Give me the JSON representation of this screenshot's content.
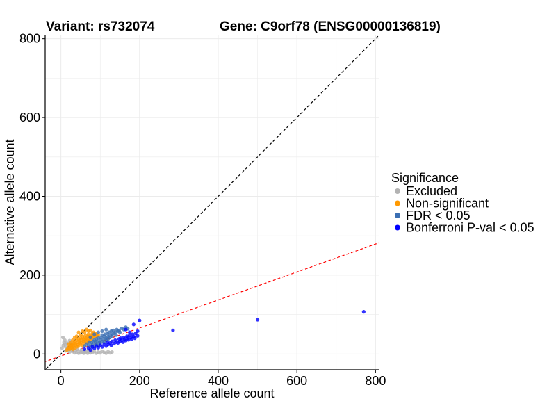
{
  "chart_data": {
    "type": "scatter",
    "title_variant": "Variant: rs732074",
    "title_gene": "Gene: C9orf78 (ENSG00000136819)",
    "xlabel": "Reference allele count",
    "ylabel": "Alternative allele count",
    "xlim": [
      -40,
      810
    ],
    "ylim": [
      -40,
      810
    ],
    "xticks": [
      0,
      200,
      400,
      600,
      800
    ],
    "yticks": [
      0,
      200,
      400,
      600,
      800
    ],
    "grid": true,
    "legend": {
      "title": "Significance",
      "placement": "right",
      "entries": [
        {
          "label": "Excluded",
          "color": "#b3b3b3"
        },
        {
          "label": "Non-significant",
          "color": "#ff9900"
        },
        {
          "label": "FDR < 0.05",
          "color": "#3b6fb3"
        },
        {
          "label": "Bonferroni P-val < 0.05",
          "color": "#0000ff"
        }
      ]
    },
    "reference_lines": [
      {
        "name": "identity",
        "color": "#000000",
        "slope": 1,
        "intercept": 0
      },
      {
        "name": "fitted",
        "color": "#ff0000",
        "slope": 0.355,
        "intercept": -5
      }
    ],
    "series": [
      {
        "name": "Excluded",
        "color": "#b3b3b3",
        "points": [
          [
            5,
            42
          ],
          [
            8,
            30
          ],
          [
            10,
            25
          ],
          [
            12,
            18
          ],
          [
            15,
            12
          ],
          [
            18,
            8
          ],
          [
            20,
            15
          ],
          [
            22,
            5
          ],
          [
            25,
            20
          ],
          [
            28,
            10
          ],
          [
            30,
            6
          ],
          [
            32,
            14
          ],
          [
            35,
            3
          ],
          [
            38,
            9
          ],
          [
            40,
            4
          ],
          [
            42,
            12
          ],
          [
            45,
            2
          ],
          [
            48,
            7
          ],
          [
            50,
            3
          ],
          [
            52,
            10
          ],
          [
            55,
            5
          ],
          [
            58,
            2
          ],
          [
            60,
            8
          ],
          [
            62,
            4
          ],
          [
            65,
            6
          ],
          [
            68,
            2
          ],
          [
            70,
            9
          ],
          [
            72,
            5
          ],
          [
            75,
            3
          ],
          [
            78,
            7
          ],
          [
            80,
            4
          ],
          [
            85,
            6
          ],
          [
            90,
            2
          ],
          [
            95,
            5
          ],
          [
            100,
            3
          ],
          [
            105,
            7
          ],
          [
            110,
            4
          ],
          [
            115,
            2
          ],
          [
            120,
            6
          ],
          [
            125,
            3
          ],
          [
            130,
            5
          ],
          [
            10,
            35
          ],
          [
            15,
            28
          ],
          [
            25,
            30
          ],
          [
            6,
            22
          ],
          [
            12,
            8
          ],
          [
            3,
            15
          ],
          [
            18,
            26
          ],
          [
            22,
            34
          ],
          [
            30,
            22
          ]
        ]
      },
      {
        "name": "Non-significant",
        "color": "#ff9900",
        "points": [
          [
            15,
            10
          ],
          [
            18,
            14
          ],
          [
            20,
            18
          ],
          [
            22,
            12
          ],
          [
            24,
            20
          ],
          [
            25,
            15
          ],
          [
            27,
            22
          ],
          [
            28,
            17
          ],
          [
            30,
            25
          ],
          [
            30,
            12
          ],
          [
            32,
            20
          ],
          [
            33,
            28
          ],
          [
            35,
            15
          ],
          [
            35,
            32
          ],
          [
            37,
            22
          ],
          [
            38,
            26
          ],
          [
            40,
            18
          ],
          [
            40,
            35
          ],
          [
            42,
            30
          ],
          [
            43,
            24
          ],
          [
            45,
            20
          ],
          [
            45,
            38
          ],
          [
            47,
            28
          ],
          [
            48,
            33
          ],
          [
            50,
            25
          ],
          [
            50,
            40
          ],
          [
            52,
            30
          ],
          [
            53,
            36
          ],
          [
            55,
            22
          ],
          [
            55,
            45
          ],
          [
            57,
            32
          ],
          [
            58,
            38
          ],
          [
            60,
            28
          ],
          [
            60,
            42
          ],
          [
            62,
            35
          ],
          [
            63,
            48
          ],
          [
            65,
            30
          ],
          [
            65,
            40
          ],
          [
            67,
            36
          ],
          [
            68,
            44
          ],
          [
            70,
            32
          ],
          [
            70,
            50
          ],
          [
            72,
            38
          ],
          [
            73,
            45
          ],
          [
            75,
            42
          ],
          [
            75,
            35
          ],
          [
            77,
            48
          ],
          [
            78,
            40
          ],
          [
            80,
            45
          ],
          [
            80,
            52
          ],
          [
            82,
            42
          ],
          [
            83,
            55
          ],
          [
            85,
            48
          ],
          [
            87,
            52
          ],
          [
            88,
            44
          ],
          [
            90,
            50
          ],
          [
            92,
            46
          ],
          [
            95,
            48
          ],
          [
            45,
            55
          ],
          [
            55,
            58
          ],
          [
            65,
            62
          ],
          [
            40,
            45
          ],
          [
            30,
            35
          ],
          [
            50,
            48
          ],
          [
            60,
            55
          ],
          [
            70,
            58
          ],
          [
            25,
            28
          ],
          [
            35,
            42
          ],
          [
            20,
            25
          ],
          [
            75,
            60
          ]
        ]
      },
      {
        "name": "FDR < 0.05",
        "color": "#3b6fb3",
        "points": [
          [
            60,
            20
          ],
          [
            65,
            25
          ],
          [
            70,
            22
          ],
          [
            72,
            30
          ],
          [
            75,
            18
          ],
          [
            78,
            28
          ],
          [
            80,
            24
          ],
          [
            82,
            32
          ],
          [
            85,
            20
          ],
          [
            85,
            35
          ],
          [
            88,
            28
          ],
          [
            90,
            38
          ],
          [
            90,
            25
          ],
          [
            92,
            32
          ],
          [
            95,
            22
          ],
          [
            95,
            40
          ],
          [
            98,
            30
          ],
          [
            100,
            35
          ],
          [
            100,
            26
          ],
          [
            102,
            42
          ],
          [
            105,
            32
          ],
          [
            105,
            48
          ],
          [
            108,
            38
          ],
          [
            110,
            30
          ],
          [
            110,
            45
          ],
          [
            112,
            50
          ],
          [
            115,
            40
          ],
          [
            115,
            35
          ],
          [
            118,
            52
          ],
          [
            120,
            44
          ],
          [
            120,
            38
          ],
          [
            122,
            55
          ],
          [
            125,
            48
          ],
          [
            125,
            42
          ],
          [
            128,
            58
          ],
          [
            130,
            50
          ],
          [
            130,
            45
          ],
          [
            133,
            60
          ],
          [
            135,
            52
          ],
          [
            138,
            55
          ],
          [
            140,
            48
          ],
          [
            142,
            62
          ],
          [
            145,
            58
          ],
          [
            148,
            60
          ],
          [
            150,
            55
          ],
          [
            155,
            65
          ],
          [
            160,
            62
          ],
          [
            165,
            68
          ],
          [
            170,
            64
          ],
          [
            75,
            42
          ],
          [
            85,
            50
          ],
          [
            95,
            55
          ],
          [
            105,
            58
          ],
          [
            115,
            62
          ]
        ]
      },
      {
        "name": "Bonferroni P-val < 0.05",
        "color": "#0000ff",
        "points": [
          [
            60,
            12
          ],
          [
            70,
            15
          ],
          [
            75,
            10
          ],
          [
            80,
            18
          ],
          [
            85,
            14
          ],
          [
            90,
            20
          ],
          [
            95,
            16
          ],
          [
            100,
            22
          ],
          [
            105,
            18
          ],
          [
            110,
            25
          ],
          [
            115,
            20
          ],
          [
            118,
            30
          ],
          [
            120,
            24
          ],
          [
            125,
            28
          ],
          [
            128,
            22
          ],
          [
            130,
            32
          ],
          [
            135,
            26
          ],
          [
            138,
            35
          ],
          [
            140,
            30
          ],
          [
            145,
            28
          ],
          [
            148,
            38
          ],
          [
            150,
            32
          ],
          [
            152,
            40
          ],
          [
            155,
            35
          ],
          [
            158,
            30
          ],
          [
            160,
            42
          ],
          [
            162,
            38
          ],
          [
            165,
            34
          ],
          [
            168,
            45
          ],
          [
            170,
            40
          ],
          [
            172,
            36
          ],
          [
            175,
            48
          ],
          [
            178,
            42
          ],
          [
            180,
            38
          ],
          [
            182,
            50
          ],
          [
            185,
            44
          ],
          [
            188,
            40
          ],
          [
            190,
            52
          ],
          [
            195,
            46
          ],
          [
            200,
            85
          ],
          [
            185,
            75
          ],
          [
            165,
            62
          ],
          [
            175,
            55
          ],
          [
            195,
            58
          ],
          [
            285,
            60
          ],
          [
            500,
            87
          ],
          [
            770,
            107
          ]
        ]
      }
    ]
  }
}
